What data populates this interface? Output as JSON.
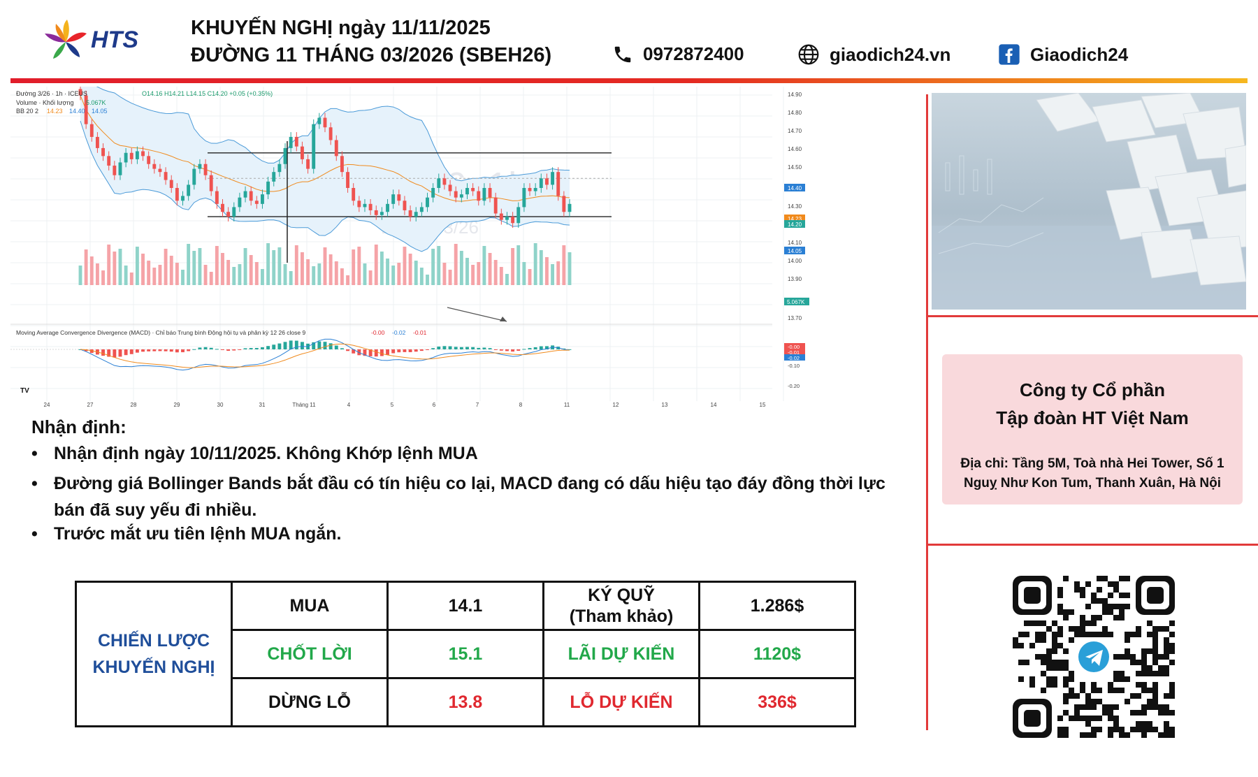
{
  "brand": {
    "name": "HTS"
  },
  "header": {
    "title_line1": "KHUYẾN NGHỊ ngày 11/11/2025",
    "title_line2": "ĐƯỜNG 11 THÁNG 03/2026 (SBEH26)",
    "phone": "0972872400",
    "website": "giaodich24.vn",
    "facebook": "Giaodich24"
  },
  "chart_data": {
    "type": "candlestick",
    "header_text": "Đường 3/26 · 1h · ICEUS",
    "ohlc_text": "O14.16 H14.21 L14.15 C14.20 +0.05 (+0.35%)",
    "volume_label": "Volume · Khối lượng",
    "volume_value": "5.067K",
    "bb_label": "BB 20 2",
    "bb_values": [
      "14.23",
      "14.40",
      "14.05"
    ],
    "watermark_symbol": "SBEH26, 1h",
    "watermark_name": "Đường 3/26",
    "macd_label": "Moving Average Convergence Divergence (MACD) · Chỉ báo Trung bình Động hội tụ và phân kỳ 12 26 close 9",
    "macd_values": [
      "-0.00",
      "-0.02",
      "-0.01"
    ],
    "price_axis": [
      "14.90",
      "14.80",
      "14.70",
      "14.60",
      "14.50",
      "14.40",
      "14.30",
      "14.23",
      "14.20",
      "14.10",
      "14.05",
      "14.00",
      "13.90",
      "13.70"
    ],
    "macd_axis": [
      "-0.00",
      "-0.01",
      "-0.02",
      "-0.10",
      "-0.20"
    ],
    "volume_tag": "5.067K",
    "x_labels": [
      "24",
      "27",
      "28",
      "29",
      "30",
      "31",
      "Tháng 11",
      "4",
      "5",
      "6",
      "7",
      "8",
      "11",
      "12",
      "13",
      "14",
      "15"
    ],
    "resistance": 14.52,
    "support": 14.12,
    "ylim": [
      13.7,
      14.9
    ],
    "closes": [
      14.88,
      14.7,
      14.62,
      14.55,
      14.5,
      14.44,
      14.38,
      14.46,
      14.52,
      14.48,
      14.53,
      14.5,
      14.45,
      14.42,
      14.4,
      14.35,
      14.3,
      14.22,
      14.25,
      14.32,
      14.42,
      14.45,
      14.38,
      14.28,
      14.2,
      14.15,
      14.12,
      14.18,
      14.24,
      14.28,
      14.22,
      14.2,
      14.26,
      14.34,
      14.4,
      14.45,
      14.55,
      14.62,
      14.56,
      14.48,
      14.42,
      14.7,
      14.74,
      14.68,
      14.6,
      14.5,
      14.4,
      14.3,
      14.22,
      14.18,
      14.2,
      14.16,
      14.13,
      14.15,
      14.2,
      14.26,
      14.22,
      14.16,
      14.12,
      14.15,
      14.18,
      14.24,
      14.3,
      14.36,
      14.32,
      14.28,
      14.24,
      14.26,
      14.3,
      14.28,
      14.22,
      14.3,
      14.24,
      14.14,
      14.1,
      14.12,
      14.08,
      14.18,
      14.3,
      14.28,
      14.3,
      14.36,
      14.32,
      14.4,
      14.25,
      14.15,
      14.2
    ]
  },
  "company": {
    "name_line1": "Công ty Cổ phần",
    "name_line2": "Tập đoàn HT Việt Nam",
    "address_line1": "Địa chỉ: Tầng 5M, Toà nhà Hei Tower, Số 1",
    "address_line2": "Nguỵ Như Kon Tum, Thanh Xuân, Hà Nội"
  },
  "analysis": {
    "heading": "Nhận định:",
    "bullets": [
      "Nhận định ngày 10/11/2025. Không Khớp lệnh MUA",
      "Đường giá Bollinger Bands bắt đầu có tín hiệu co lại, MACD đang có dấu hiệu tạo đáy đồng thời lực bán đã suy yếu đi nhiều.",
      "Trước mắt ưu tiên lệnh MUA ngắn."
    ]
  },
  "strategy": {
    "label_line1": "CHIẾN LƯỢC",
    "label_line2": "KHUYẾN NGHỊ",
    "buy_label": "MUA",
    "buy_price": "14.1",
    "margin_label_1": "KÝ QUỸ",
    "margin_label_2": "(Tham khảo)",
    "margin_value": "1.286$",
    "tp_label": "CHỐT LỜI",
    "tp_price": "15.1",
    "profit_label": "LÃI DỰ KIẾN",
    "profit_value": "1120$",
    "sl_label": "DỪNG LỖ",
    "sl_price": "13.8",
    "loss_label": "LỖ DỰ KIẾN",
    "loss_value": "336$"
  }
}
